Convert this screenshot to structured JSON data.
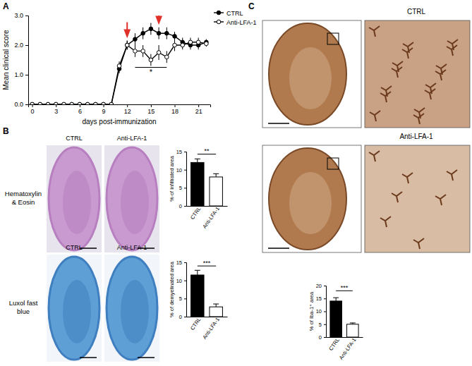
{
  "chart_data": [
    {
      "type": "line",
      "x_label": "days post-immunization",
      "y_label": "Mean clinical score",
      "x": [
        0,
        1,
        2,
        3,
        4,
        5,
        6,
        7,
        8,
        9,
        10,
        11,
        12,
        13,
        14,
        15,
        16,
        17,
        18,
        19,
        20,
        21,
        22
      ],
      "series": [
        {
          "name": "CTRL",
          "color": "#000000",
          "marker": "circle",
          "values": [
            0,
            0,
            0,
            0,
            0,
            0,
            0,
            0,
            0,
            0,
            0,
            1.2,
            2.0,
            2.2,
            2.4,
            2.55,
            2.4,
            2.4,
            2.3,
            2.1,
            2.0,
            2.0,
            2.1
          ],
          "errors": [
            0,
            0,
            0,
            0,
            0,
            0,
            0,
            0,
            0,
            0,
            0,
            0.15,
            0.15,
            0.2,
            0.2,
            0.2,
            0.2,
            0.2,
            0.15,
            0.15,
            0.15,
            0.15,
            0.1
          ]
        },
        {
          "name": "Anti-LFA-1",
          "color": "#000000",
          "marker": "open-circle",
          "values": [
            0,
            0,
            0,
            0,
            0,
            0,
            0,
            0,
            0,
            0,
            0,
            1.3,
            2.0,
            1.8,
            1.8,
            1.5,
            1.75,
            1.6,
            2.0,
            2.0,
            2.1,
            2.1,
            2.05
          ],
          "errors": [
            0,
            0,
            0,
            0,
            0,
            0,
            0,
            0,
            0,
            0,
            0,
            0.15,
            0.15,
            0.2,
            0.2,
            0.2,
            0.25,
            0.2,
            0.2,
            0.15,
            0.15,
            0.15,
            0.1
          ]
        }
      ],
      "xlim": [
        -0.5,
        22.5
      ],
      "xticks": [
        0,
        3,
        6,
        9,
        12,
        15,
        18,
        21
      ],
      "ylim": [
        0,
        3
      ],
      "yticks": [
        {
          "value": 0,
          "label": "0.0"
        },
        {
          "value": 1,
          "label": "1.0"
        },
        {
          "value": 2,
          "label": "2.0"
        },
        {
          "value": 3,
          "label": "3.0"
        }
      ],
      "legend": "top-right",
      "grid": false,
      "arrows": [
        {
          "x": 12,
          "y": 2.3
        },
        {
          "x": 16,
          "y": 2.75
        }
      ],
      "annotations": [
        {
          "text": "*",
          "x": [
            13,
            17
          ],
          "y": 1.25
        }
      ]
    },
    {
      "type": "bar",
      "y_label": "% of infiltrated area",
      "categories": [
        "CTRL",
        "Anti-LFA-1"
      ],
      "values": [
        12,
        8
      ],
      "errors": [
        1,
        0.9
      ],
      "colors": [
        "#000000",
        "#ffffff"
      ],
      "ylim": [
        0,
        15
      ],
      "yticks": [
        0,
        5,
        10,
        15
      ],
      "grid": false,
      "annotations": [
        {
          "text": "**",
          "y": 14.3
        }
      ]
    },
    {
      "type": "bar",
      "y_label": "% of demyelinated area",
      "categories": [
        "CTRL",
        "Anti-LFA-1"
      ],
      "values": [
        11.5,
        2.7
      ],
      "errors": [
        1.3,
        0.8
      ],
      "colors": [
        "#000000",
        "#ffffff"
      ],
      "ylim": [
        0,
        15
      ],
      "yticks": [
        0,
        5,
        10,
        15
      ],
      "grid": false,
      "annotations": [
        {
          "text": "***",
          "y": 14
        }
      ]
    },
    {
      "type": "bar",
      "y_label": "% of Iba-1⁺ area",
      "categories": [
        "CTRL",
        "Anti-LFA-1"
      ],
      "values": [
        14,
        5
      ],
      "errors": [
        1.3,
        0.5
      ],
      "colors": [
        "#000000",
        "#ffffff"
      ],
      "ylim": [
        0,
        20
      ],
      "yticks": [
        0,
        5,
        10,
        15,
        20
      ],
      "grid": false,
      "annotations": [
        {
          "text": "***",
          "y": 18
        }
      ]
    }
  ],
  "panel_labels": [
    "A",
    "B",
    "C"
  ],
  "images": {
    "panel_b": {
      "columns": [
        "CTRL",
        "Anti-LFA-1"
      ],
      "rows": [
        [
          "Hematoxylin",
          "& Eosin"
        ],
        [
          "Luxol fast",
          "blue"
        ]
      ]
    },
    "panel_c": {
      "rows": [
        "CTRL",
        "Anti-LFA-1"
      ]
    }
  }
}
